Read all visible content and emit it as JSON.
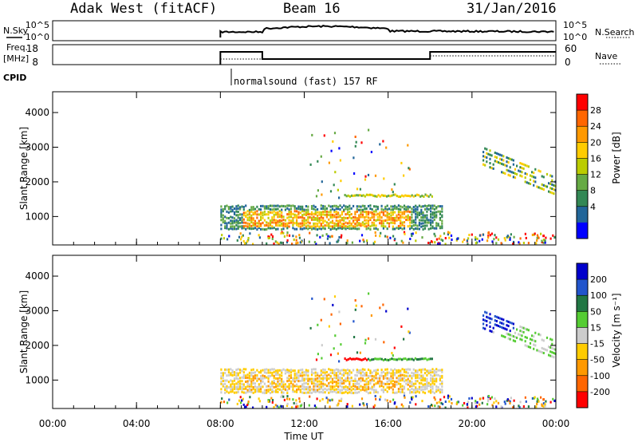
{
  "header": {
    "station": "Adak West (fitACF)",
    "beam": "Beam 16",
    "date": "31/Jan/2016"
  },
  "left_labels": {
    "nsky": "N.Sky",
    "freq_top": "Freq.",
    "freq_unit": "[MHz]",
    "cpid": "CPID"
  },
  "right_labels": {
    "nsearch": "N.Search",
    "nave": "Nave"
  },
  "noise_axis": {
    "ticks_left": [
      "10^5",
      "10^0"
    ],
    "ticks_right": [
      "10^5",
      "10^0"
    ]
  },
  "freq_axis": {
    "ticks_left": [
      "18",
      "8"
    ],
    "ticks_right": [
      "60",
      "0"
    ]
  },
  "cpid_text": "normalsound (fast) 157 RF",
  "chart_data": [
    {
      "type": "heatmap",
      "name": "power",
      "ylabel": "Slant Range [km]",
      "yticks": [
        "4000",
        "3000",
        "2000",
        "1000"
      ],
      "ylim": [
        180,
        4600
      ],
      "colorbar": {
        "label": "Power [dB]",
        "ticks": [
          "28",
          "24",
          "20",
          "16",
          "12",
          "8",
          "4"
        ],
        "colors": [
          "#ff0000",
          "#ff6600",
          "#ff9900",
          "#ffcc00",
          "#bbcc00",
          "#66aa44",
          "#338855",
          "#226699",
          "#0000ff"
        ]
      }
    },
    {
      "type": "heatmap",
      "name": "velocity",
      "ylabel": "Slant Range [km]",
      "yticks": [
        "4000",
        "3000",
        "2000",
        "1000"
      ],
      "ylim": [
        180,
        4600
      ],
      "colorbar": {
        "label": "Velocity [m s⁻¹]",
        "ticks": [
          "200",
          "100",
          "50",
          "15",
          "-15",
          "-50",
          "-100",
          "-200"
        ],
        "colors": [
          "#0000cc",
          "#2255cc",
          "#227744",
          "#55cc33",
          "#cccccc",
          "#ffcc00",
          "#ff9900",
          "#ff6600",
          "#ff0000"
        ]
      }
    }
  ],
  "xaxis": {
    "label": "Time UT",
    "ticks": [
      "00:00",
      "04:00",
      "08:00",
      "12:00",
      "16:00",
      "20:00",
      "00:00"
    ]
  }
}
